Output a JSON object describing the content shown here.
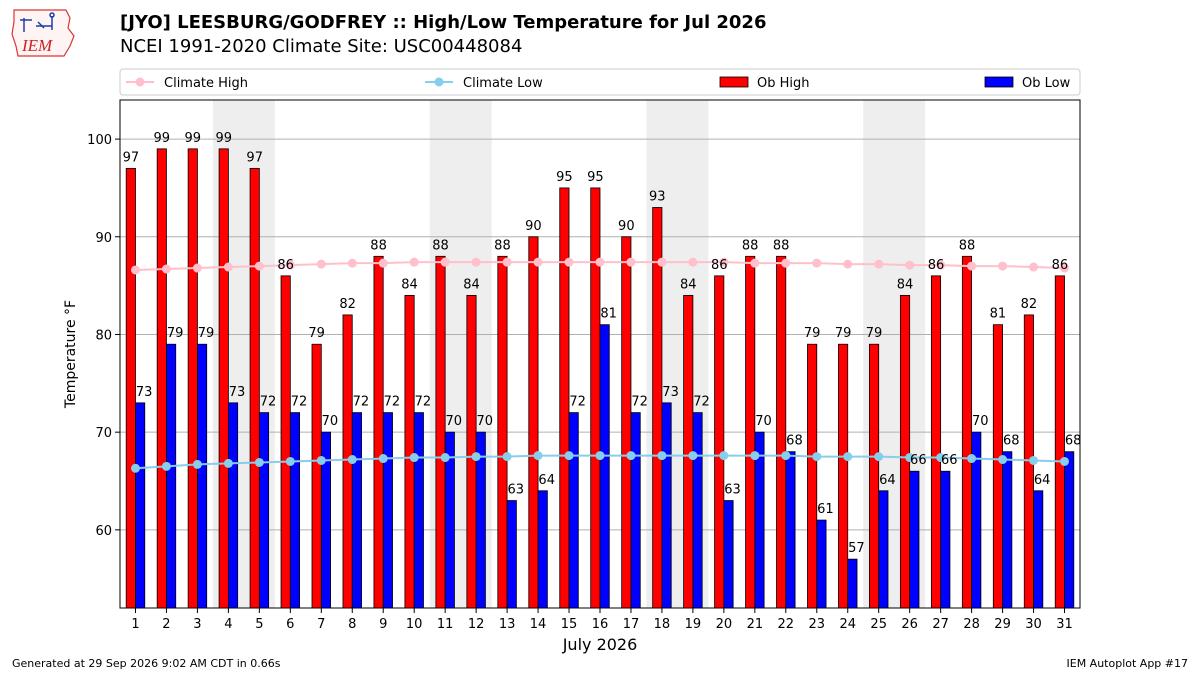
{
  "header": {
    "title_line1": "[JYO] LEESBURG/GODFREY :: High/Low Temperature for Jul 2026",
    "title_line2": "NCEI 1991-2020 Climate Site: USC00448084",
    "logo_text": "IEM"
  },
  "footer": {
    "left": "Generated at 29 Sep 2026 9:02 AM CDT in 0.66s",
    "right": "IEM Autoplot App #17"
  },
  "chart_data": {
    "type": "bar",
    "title": "[JYO] LEESBURG/GODFREY :: High/Low Temperature for Jul 2026",
    "subtitle": "NCEI 1991-2020 Climate Site: USC00448084",
    "xlabel": "July 2026",
    "ylabel": "Temperature °F",
    "ylim": [
      52,
      104
    ],
    "yticks": [
      60,
      70,
      80,
      90,
      100
    ],
    "grid": true,
    "legend_position": "top",
    "weekend_shading_days": [
      [
        4,
        5
      ],
      [
        11,
        12
      ],
      [
        18,
        19
      ],
      [
        25,
        26
      ]
    ],
    "categories": [
      1,
      2,
      3,
      4,
      5,
      6,
      7,
      8,
      9,
      10,
      11,
      12,
      13,
      14,
      15,
      16,
      17,
      18,
      19,
      20,
      21,
      22,
      23,
      24,
      25,
      26,
      27,
      28,
      29,
      30,
      31
    ],
    "series": [
      {
        "name": "Climate High",
        "kind": "line",
        "color": "#ffc0cb",
        "values": [
          86.6,
          86.7,
          86.8,
          86.9,
          87.0,
          87.1,
          87.2,
          87.3,
          87.3,
          87.4,
          87.4,
          87.4,
          87.4,
          87.4,
          87.4,
          87.4,
          87.4,
          87.4,
          87.4,
          87.4,
          87.3,
          87.3,
          87.3,
          87.2,
          87.2,
          87.1,
          87.1,
          87.0,
          87.0,
          86.9,
          86.8
        ]
      },
      {
        "name": "Climate Low",
        "kind": "line",
        "color": "#87ceeb",
        "values": [
          66.3,
          66.5,
          66.7,
          66.8,
          66.9,
          67.0,
          67.1,
          67.2,
          67.3,
          67.4,
          67.4,
          67.5,
          67.5,
          67.6,
          67.6,
          67.6,
          67.6,
          67.6,
          67.6,
          67.6,
          67.6,
          67.6,
          67.5,
          67.5,
          67.5,
          67.4,
          67.4,
          67.3,
          67.2,
          67.1,
          67.0
        ]
      },
      {
        "name": "Ob High",
        "kind": "bar",
        "color": "#ff0000",
        "values": [
          97,
          99,
          99,
          99,
          97,
          86,
          79,
          82,
          88,
          84,
          88,
          84,
          88,
          90,
          95,
          95,
          90,
          93,
          84,
          86,
          88,
          88,
          79,
          79,
          79,
          84,
          86,
          88,
          81,
          82,
          86
        ]
      },
      {
        "name": "Ob Low",
        "kind": "bar",
        "color": "#0000ff",
        "values": [
          73,
          79,
          79,
          73,
          72,
          72,
          70,
          72,
          72,
          72,
          70,
          70,
          63,
          64,
          72,
          81,
          72,
          73,
          72,
          63,
          70,
          68,
          61,
          57,
          64,
          66,
          66,
          70,
          68,
          64,
          68
        ]
      }
    ]
  }
}
